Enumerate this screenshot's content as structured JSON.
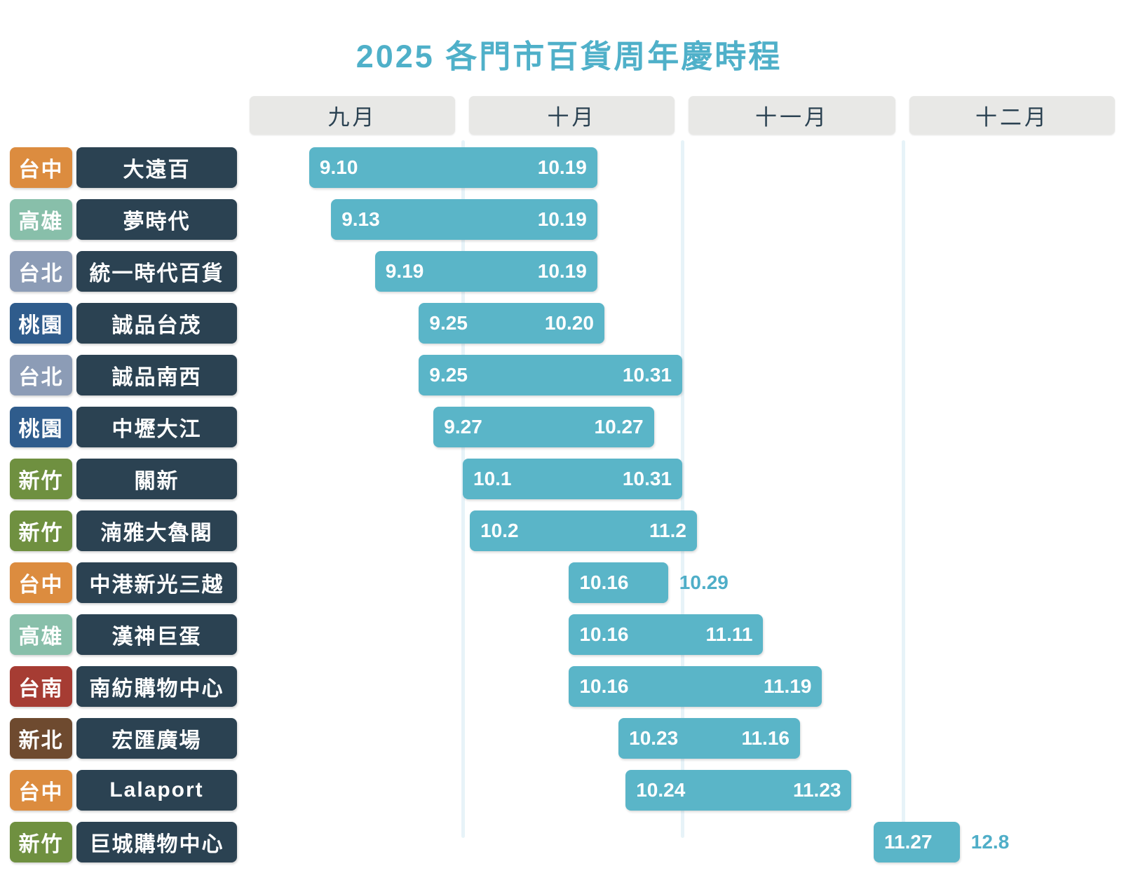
{
  "title": "2025 各門市百貨周年慶時程",
  "colors": {
    "title": "#4FB0C9",
    "bar": "#5AB5C8",
    "store_box": "#2B4252",
    "header_bg": "#E8E8E6",
    "header_text": "#2B4252",
    "gridline": "#E7F3F8",
    "outside_label": "#4FAEC8",
    "background": "#FFFFFF",
    "cities": {
      "台中": "#DC8C3F",
      "高雄": "#88BFAA",
      "台北": "#8C9CB6",
      "桃園": "#2F5C8C",
      "新竹": "#6F9040",
      "台南": "#A63C33",
      "新北": "#6E4A2F"
    }
  },
  "chart_data": {
    "type": "bar",
    "subtype": "gantt-timeline",
    "title": "2025 各門市百貨周年慶時程",
    "x_axis_labels": [
      "九月",
      "十月",
      "十一月",
      "十二月"
    ],
    "x_axis_months": [
      9,
      10,
      11,
      12
    ],
    "x_range": [
      "9.1",
      "12.31"
    ],
    "grid": "month-boundaries",
    "legend": "none",
    "categories": [
      "大遠百",
      "夢時代",
      "統一時代百貨",
      "誠品台茂",
      "誠品南西",
      "中壢大江",
      "關新",
      "湳雅大魯閣",
      "中港新光三越",
      "漢神巨蛋",
      "南紡購物中心",
      "宏匯廣場",
      "Lalaport",
      "巨城購物中心"
    ],
    "bars": [
      {
        "city": "台中",
        "store": "大遠百",
        "start": "9.10",
        "end": "10.19",
        "end_label_outside": false
      },
      {
        "city": "高雄",
        "store": "夢時代",
        "start": "9.13",
        "end": "10.19",
        "end_label_outside": false
      },
      {
        "city": "台北",
        "store": "統一時代百貨",
        "start": "9.19",
        "end": "10.19",
        "end_label_outside": false
      },
      {
        "city": "桃園",
        "store": "誠品台茂",
        "start": "9.25",
        "end": "10.20",
        "end_label_outside": false
      },
      {
        "city": "台北",
        "store": "誠品南西",
        "start": "9.25",
        "end": "10.31",
        "end_label_outside": false
      },
      {
        "city": "桃園",
        "store": "中壢大江",
        "start": "9.27",
        "end": "10.27",
        "end_label_outside": false
      },
      {
        "city": "新竹",
        "store": "關新",
        "start": "10.1",
        "end": "10.31",
        "end_label_outside": false
      },
      {
        "city": "新竹",
        "store": "湳雅大魯閣",
        "start": "10.2",
        "end": "11.2",
        "end_label_outside": false
      },
      {
        "city": "台中",
        "store": "中港新光三越",
        "start": "10.16",
        "end": "10.29",
        "end_label_outside": true
      },
      {
        "city": "高雄",
        "store": "漢神巨蛋",
        "start": "10.16",
        "end": "11.11",
        "end_label_outside": false
      },
      {
        "city": "台南",
        "store": "南紡購物中心",
        "start": "10.16",
        "end": "11.19",
        "end_label_outside": false
      },
      {
        "city": "新北",
        "store": "宏匯廣場",
        "start": "10.23",
        "end": "11.16",
        "end_label_outside": false
      },
      {
        "city": "台中",
        "store": "Lalaport",
        "start": "10.24",
        "end": "11.23",
        "end_label_outside": false
      },
      {
        "city": "新竹",
        "store": "巨城購物中心",
        "start": "11.27",
        "end": "12.8",
        "end_label_outside": true
      }
    ]
  }
}
